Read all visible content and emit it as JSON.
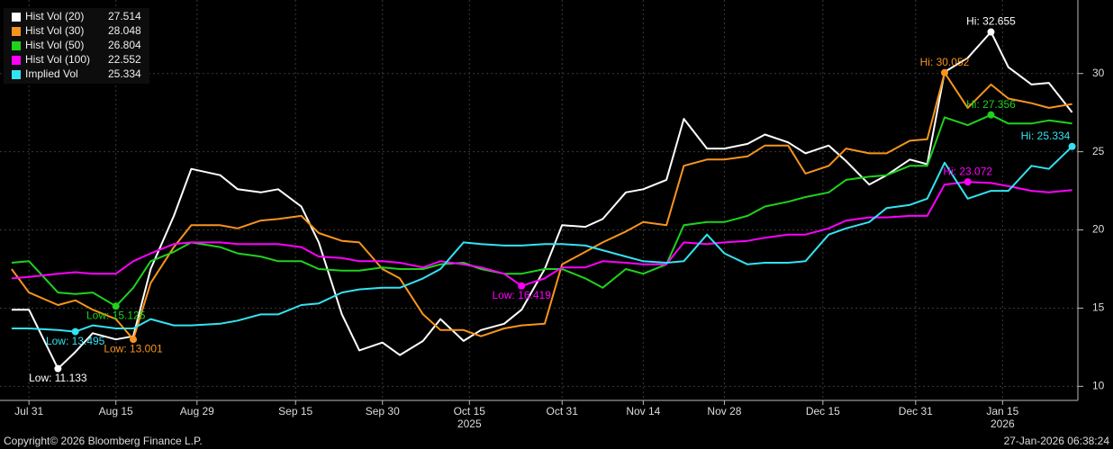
{
  "chart_data": {
    "type": "line",
    "x": [
      "2025-07-28",
      "2025-07-31",
      "2025-08-05",
      "2025-08-08",
      "2025-08-11",
      "2025-08-15",
      "2025-08-18",
      "2025-08-21",
      "2025-08-25",
      "2025-08-28",
      "2025-09-02",
      "2025-09-05",
      "2025-09-09",
      "2025-09-12",
      "2025-09-16",
      "2025-09-19",
      "2025-09-23",
      "2025-09-26",
      "2025-09-30",
      "2025-10-03",
      "2025-10-07",
      "2025-10-10",
      "2025-10-14",
      "2025-10-17",
      "2025-10-21",
      "2025-10-24",
      "2025-10-28",
      "2025-10-31",
      "2025-11-04",
      "2025-11-07",
      "2025-11-11",
      "2025-11-14",
      "2025-11-18",
      "2025-11-21",
      "2025-11-25",
      "2025-11-28",
      "2025-12-02",
      "2025-12-05",
      "2025-12-09",
      "2025-12-12",
      "2025-12-16",
      "2025-12-19",
      "2025-12-23",
      "2025-12-26",
      "2025-12-30",
      "2026-01-02",
      "2026-01-05",
      "2026-01-09",
      "2026-01-13",
      "2026-01-16",
      "2026-01-20",
      "2026-01-23",
      "2026-01-27"
    ],
    "series": [
      {
        "name": "Hist Vol (20)",
        "color": "#ffffff",
        "last": 27.514,
        "values": [
          14.9,
          14.9,
          11.133,
          12.2,
          13.4,
          13.0,
          13.2,
          17.5,
          20.9,
          23.9,
          23.5,
          22.6,
          22.4,
          22.6,
          21.5,
          19.2,
          14.6,
          12.3,
          12.8,
          12.0,
          12.9,
          14.3,
          12.9,
          13.6,
          14.0,
          14.9,
          17.5,
          20.3,
          20.2,
          20.7,
          22.4,
          22.6,
          23.2,
          27.1,
          25.2,
          25.2,
          25.5,
          26.1,
          25.6,
          24.9,
          25.4,
          24.4,
          22.9,
          23.5,
          24.5,
          24.2,
          30.1,
          31.0,
          32.655,
          30.4,
          29.3,
          29.4,
          27.514
        ],
        "high": {
          "x": "2026-01-13",
          "value": 32.655,
          "label": "Hi: 32.655"
        },
        "low": {
          "x": "2025-08-05",
          "value": 11.133,
          "label": "Low: 11.133"
        }
      },
      {
        "name": "Hist Vol (30)",
        "color": "#f7941d",
        "last": 28.048,
        "values": [
          17.5,
          16.0,
          15.2,
          15.5,
          14.9,
          14.3,
          13.001,
          16.6,
          18.9,
          20.3,
          20.3,
          20.1,
          20.6,
          20.7,
          20.9,
          19.8,
          19.3,
          19.2,
          17.5,
          16.9,
          14.6,
          13.6,
          13.6,
          13.2,
          13.7,
          13.9,
          14.0,
          17.8,
          18.6,
          19.2,
          19.9,
          20.5,
          20.3,
          24.1,
          24.5,
          24.5,
          24.7,
          25.4,
          25.4,
          23.6,
          24.1,
          25.2,
          24.9,
          24.9,
          25.7,
          25.8,
          30.052,
          27.8,
          29.3,
          28.4,
          28.1,
          27.8,
          28.048
        ],
        "high": {
          "x": "2026-01-05",
          "value": 30.052,
          "label": "Hi: 30.052"
        },
        "low": {
          "x": "2025-08-18",
          "value": 13.001,
          "label": "Low: 13.001"
        }
      },
      {
        "name": "Hist Vol (50)",
        "color": "#1ed21e",
        "last": 26.804,
        "values": [
          17.9,
          18.0,
          16.0,
          15.9,
          16.0,
          15.125,
          16.3,
          18.0,
          18.6,
          19.2,
          18.9,
          18.5,
          18.3,
          18.0,
          18.0,
          17.5,
          17.4,
          17.4,
          17.6,
          17.5,
          17.5,
          17.8,
          17.9,
          17.5,
          17.2,
          17.2,
          17.5,
          17.5,
          16.9,
          16.3,
          17.5,
          17.2,
          17.8,
          20.3,
          20.5,
          20.5,
          20.9,
          21.5,
          21.8,
          22.1,
          22.4,
          23.2,
          23.4,
          23.5,
          24.1,
          24.1,
          27.2,
          26.7,
          27.356,
          26.8,
          26.8,
          27.0,
          26.804
        ],
        "high": {
          "x": "2026-01-13",
          "value": 27.356,
          "label": "Hi: 27.356"
        },
        "low": {
          "x": "2025-08-15",
          "value": 15.125,
          "label": "Low: 15.125"
        }
      },
      {
        "name": "Hist Vol (100)",
        "color": "#ff00ff",
        "last": 22.552,
        "values": [
          16.9,
          17.0,
          17.2,
          17.3,
          17.2,
          17.2,
          18.0,
          18.5,
          19.1,
          19.2,
          19.2,
          19.1,
          19.1,
          19.1,
          18.9,
          18.3,
          18.2,
          18.0,
          18.0,
          17.9,
          17.6,
          18.0,
          17.8,
          17.6,
          17.2,
          16.419,
          16.9,
          17.6,
          17.6,
          18.0,
          17.9,
          17.8,
          17.8,
          19.2,
          19.1,
          19.2,
          19.3,
          19.5,
          19.7,
          19.7,
          20.1,
          20.6,
          20.8,
          20.8,
          20.9,
          20.9,
          22.9,
          23.072,
          23.0,
          22.8,
          22.5,
          22.4,
          22.552
        ],
        "high": {
          "x": "2026-01-09",
          "value": 23.072,
          "label": "Hi: 23.072"
        },
        "low": {
          "x": "2025-10-24",
          "value": 16.419,
          "label": "Low: 16.419"
        }
      },
      {
        "name": "Implied Vol",
        "color": "#33e3f2",
        "last": 25.334,
        "values": [
          13.7,
          13.7,
          13.6,
          13.495,
          13.9,
          13.7,
          13.7,
          14.3,
          13.9,
          13.9,
          14.0,
          14.2,
          14.6,
          14.6,
          15.2,
          15.3,
          16.0,
          16.2,
          16.3,
          16.3,
          16.9,
          17.5,
          19.2,
          19.1,
          19.0,
          19.0,
          19.1,
          19.1,
          19.0,
          18.7,
          18.3,
          18.0,
          17.9,
          18.0,
          19.7,
          18.5,
          17.8,
          17.9,
          17.9,
          18.0,
          19.7,
          20.1,
          20.5,
          21.4,
          21.6,
          22.0,
          24.3,
          22.0,
          22.5,
          22.5,
          24.1,
          23.9,
          25.334
        ],
        "high": {
          "x": "2026-01-27",
          "value": 25.334,
          "label": "Hi: 25.334"
        },
        "low": {
          "x": "2025-08-08",
          "value": 13.495,
          "label": "Low: 13.495"
        }
      }
    ],
    "xlim": [
      "2025-07-26",
      "2026-01-28"
    ],
    "xticks": [
      {
        "value": "2025-07-31",
        "label": "Jul 31"
      },
      {
        "value": "2025-08-15",
        "label": "Aug 15"
      },
      {
        "value": "2025-08-29",
        "label": "Aug 29"
      },
      {
        "value": "2025-09-15",
        "label": "Sep 15"
      },
      {
        "value": "2025-09-30",
        "label": "Sep 30"
      },
      {
        "value": "2025-10-15",
        "label": "Oct 15"
      },
      {
        "value": "2025-10-31",
        "label": "Oct 31"
      },
      {
        "value": "2025-11-14",
        "label": "Nov 14"
      },
      {
        "value": "2025-11-28",
        "label": "Nov 28"
      },
      {
        "value": "2025-12-15",
        "label": "Dec 15"
      },
      {
        "value": "2025-12-31",
        "label": "Dec 31"
      },
      {
        "value": "2026-01-15",
        "label": "Jan 15"
      }
    ],
    "year_labels": [
      {
        "value": "2025-10-15",
        "label": "2025"
      },
      {
        "value": "2026-01-15",
        "label": "2026"
      }
    ],
    "ylim": [
      9.1,
      34.7
    ],
    "yticks": [
      10,
      15,
      20,
      25,
      30
    ],
    "grid": true,
    "legend": "top-left"
  },
  "footer": {
    "copyright": "Copyright© 2026 Bloomberg Finance L.P.",
    "timestamp": "27-Jan-2026 06:38:24"
  }
}
